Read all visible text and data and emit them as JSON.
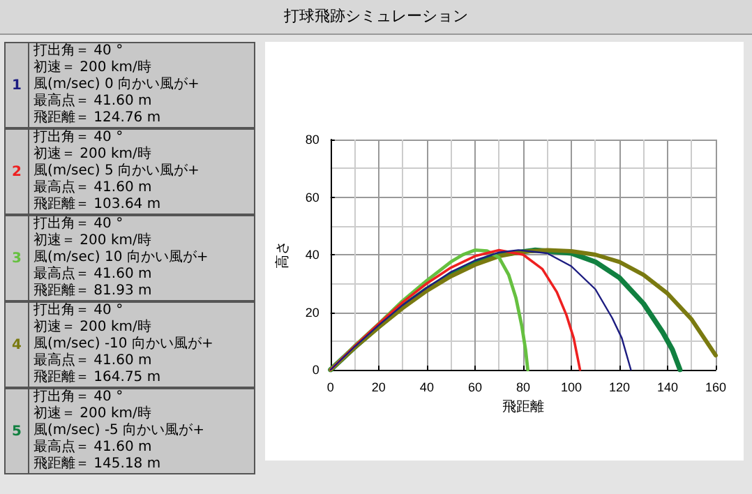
{
  "chart_data": {
    "type": "line",
    "title": "打球飛跡シミュレーション",
    "xlabel": "飛距離",
    "ylabel": "高さ",
    "xlim": [
      0,
      160
    ],
    "xticks": [
      0,
      20,
      40,
      60,
      80,
      100,
      120,
      140,
      160
    ],
    "ylim": [
      0,
      80
    ],
    "yticks": [
      0,
      20,
      40,
      60,
      80
    ],
    "grid": true,
    "legend": false,
    "marker": "none",
    "line_style": "solid",
    "series": [
      {
        "name": "1",
        "color": "#1c1c80",
        "x": [
          0,
          10,
          20,
          30,
          40,
          50,
          60,
          70,
          78,
          90,
          100,
          110,
          117,
          121,
          124.76
        ],
        "values": [
          0,
          8,
          15.5,
          22.5,
          28.5,
          34,
          38,
          40.8,
          41.6,
          40.5,
          36,
          28,
          18,
          11,
          0
        ]
      },
      {
        "name": "2",
        "color": "#ee2020",
        "x": [
          0,
          10,
          20,
          30,
          40,
          50,
          60,
          70,
          80,
          88,
          94,
          98,
          101,
          103.64
        ],
        "values": [
          0,
          8.2,
          16,
          23.5,
          30,
          35.5,
          39.5,
          41.6,
          40,
          35,
          27,
          19,
          11,
          0
        ]
      },
      {
        "name": "3",
        "color": "#66c040",
        "x": [
          0,
          10,
          20,
          30,
          40,
          50,
          55,
          60,
          65,
          70,
          74,
          77,
          79.5,
          81,
          81.93
        ],
        "values": [
          0,
          8.3,
          16,
          24,
          31,
          37.5,
          40,
          41.6,
          41.3,
          39,
          33,
          25,
          15,
          7,
          0
        ]
      },
      {
        "name": "4",
        "color": "#7a7a10",
        "x": [
          0,
          10,
          20,
          30,
          40,
          50,
          60,
          70,
          80,
          90,
          100,
          110,
          120,
          130,
          140,
          150,
          160
        ],
        "values": [
          0,
          7.7,
          14.8,
          21.5,
          27.5,
          32.5,
          36.5,
          39.5,
          41,
          41.6,
          41.2,
          40,
          37.5,
          33,
          26.5,
          17.5,
          5
        ]
      },
      {
        "name": "5",
        "color": "#118040",
        "x": [
          0,
          10,
          20,
          30,
          40,
          50,
          60,
          70,
          85,
          100,
          110,
          120,
          130,
          138,
          142,
          145.18
        ],
        "values": [
          0,
          7.8,
          15,
          22,
          28,
          33,
          37,
          40,
          41.6,
          40.5,
          37.5,
          32,
          23,
          13,
          7,
          0
        ]
      }
    ],
    "annotations": [
      "打出角＝ 40 °",
      "初速＝ 200 km/時",
      "風(m/sec) 0 向かい風が+",
      "最高点＝ 41.60 m",
      "飛距離＝ 124.76 m",
      "打出角＝ 40 °",
      "初速＝ 200 km/時",
      "風(m/sec) 5 向かい風が+",
      "最高点＝ 41.60 m",
      "飛距離＝ 103.64 m",
      "打出角＝ 40 °",
      "初速＝ 200 km/時",
      "風(m/sec) 10 向かい風が+",
      "最高点＝ 41.60 m",
      "飛距離＝ 81.93 m",
      "打出角＝ 40 °",
      "初速＝ 200 km/時",
      "風(m/sec) -10 向かい風が+",
      "最高点＝ 41.60 m",
      "飛距離＝ 164.75 m",
      "打出角＝ 40 °",
      "初速＝ 200 km/時",
      "風(m/sec) -5 向かい風が+",
      "最高点＝ 41.60 m",
      "飛距離＝ 145.18 m"
    ]
  }
}
